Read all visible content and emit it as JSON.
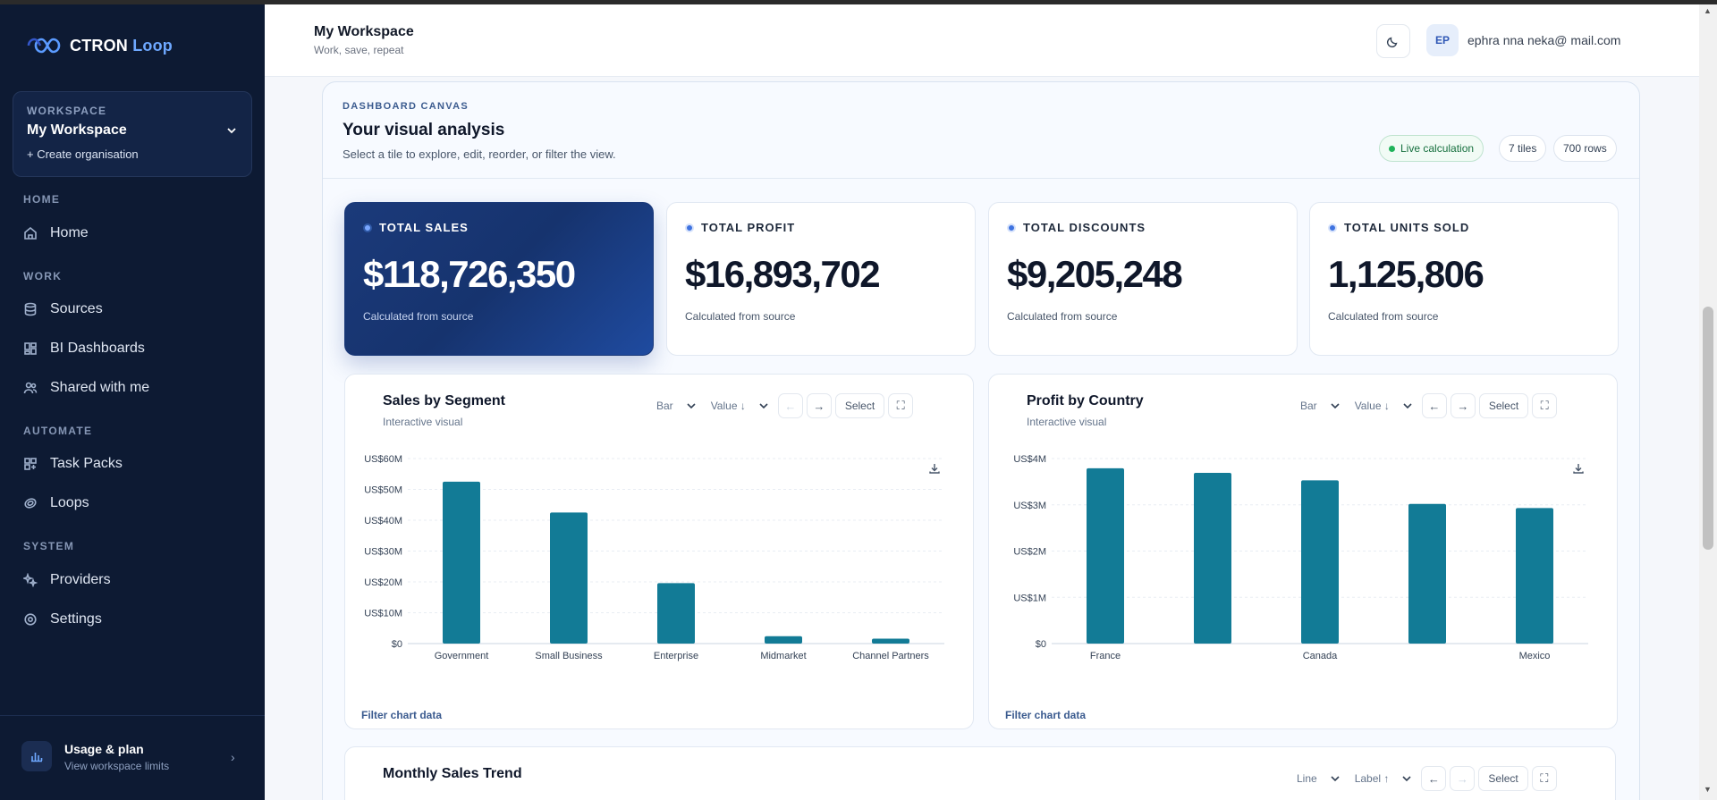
{
  "app": {
    "brand_main": "CTRON",
    "brand_accent": "Loop"
  },
  "workspace": {
    "label": "WORKSPACE",
    "name": "My Workspace",
    "create": "+ Create organisation"
  },
  "nav": {
    "home_section": "HOME",
    "home": "Home",
    "work_section": "WORK",
    "sources": "Sources",
    "bi_dashboards": "BI Dashboards",
    "shared": "Shared with me",
    "automate_section": "AUTOMATE",
    "task_packs": "Task Packs",
    "loops": "Loops",
    "system_section": "SYSTEM",
    "providers": "Providers",
    "settings": "Settings"
  },
  "usage": {
    "title": "Usage & plan",
    "subtitle": "View workspace limits"
  },
  "header": {
    "title": "My Workspace",
    "subtitle": "Work, save, repeat",
    "avatar": "EP",
    "email": "ephra   nna   neka@  mail.com"
  },
  "canvas": {
    "eyebrow": "DASHBOARD CANVAS",
    "title": "Your visual analysis",
    "description": "Select a tile to explore, edit, reorder, or filter the view.",
    "chip_live": "Live calculation",
    "chip_tiles": "7 tiles",
    "chip_rows": "700 rows"
  },
  "kpis": [
    {
      "label": "TOTAL SALES",
      "value": "$118,726,350",
      "foot": "Calculated from source"
    },
    {
      "label": "TOTAL PROFIT",
      "value": "$16,893,702",
      "foot": "Calculated from source"
    },
    {
      "label": "TOTAL DISCOUNTS",
      "value": "$9,205,248",
      "foot": "Calculated from source"
    },
    {
      "label": "TOTAL UNITS SOLD",
      "value": "1,125,806",
      "foot": "Calculated from source"
    }
  ],
  "cards": {
    "seg": {
      "title": "Sales by Segment",
      "subtitle": "Interactive visual",
      "type": "Bar",
      "sort": "Value ↓",
      "select": "Select",
      "filter": "Filter chart data"
    },
    "country": {
      "title": "Profit by Country",
      "subtitle": "Interactive visual",
      "type": "Bar",
      "sort": "Value ↓",
      "select": "Select",
      "filter": "Filter chart data"
    },
    "trend": {
      "title": "Monthly Sales Trend",
      "type": "Line",
      "sort": "Label ↑",
      "select": "Select"
    }
  },
  "colors": {
    "bar": "#127b96",
    "sidebar": "#0d1a33",
    "accent": "#3f73e0"
  },
  "chart_data": [
    {
      "type": "bar",
      "title": "Sales by Segment",
      "categories": [
        "Government",
        "Small Business",
        "Enterprise",
        "Midmarket",
        "Channel Partners"
      ],
      "values": [
        52.5,
        42.5,
        19.6,
        2.4,
        1.6
      ],
      "unit": "US$M",
      "yticks": [
        "$0",
        "US$10M",
        "US$20M",
        "US$30M",
        "US$40M",
        "US$50M",
        "US$60M"
      ],
      "ylim": [
        0,
        60
      ],
      "grid": true
    },
    {
      "type": "bar",
      "title": "Profit by Country",
      "categories": [
        "France",
        "",
        "Canada",
        "",
        "Mexico"
      ],
      "values": [
        3.79,
        3.69,
        3.53,
        3.02,
        2.93
      ],
      "unit": "US$M",
      "yticks": [
        "$0",
        "US$1M",
        "US$2M",
        "US$3M",
        "US$4M"
      ],
      "ylim": [
        0,
        4
      ],
      "grid": true
    }
  ]
}
